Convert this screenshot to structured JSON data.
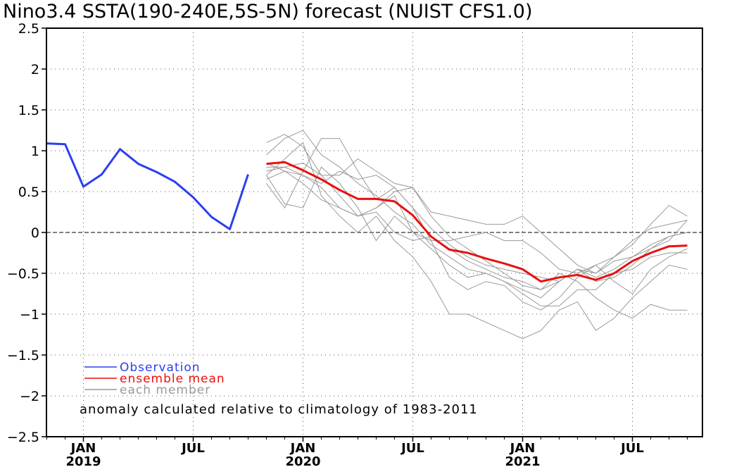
{
  "chart_data": {
    "type": "line",
    "title": "Nino3.4 SSTA(190-240E,5S-5N) forecast (NUIST CFS1.0)",
    "annotation": "anomaly calculated relative to climatology of 1983-2011",
    "ylim": [
      -2.5,
      2.5
    ],
    "yticks": [
      2.5,
      2,
      1.5,
      1,
      0.5,
      0,
      -0.5,
      -1,
      -1.5,
      -2,
      -2.5
    ],
    "xlim": [
      "2018-11",
      "2021-10"
    ],
    "xticks": [
      {
        "month": "2019-01",
        "label": "JAN",
        "year": "2019"
      },
      {
        "month": "2019-07",
        "label": "JUL",
        "year": ""
      },
      {
        "month": "2020-01",
        "label": "JAN",
        "year": "2020"
      },
      {
        "month": "2020-07",
        "label": "JUL",
        "year": ""
      },
      {
        "month": "2021-01",
        "label": "JAN",
        "year": "2021"
      },
      {
        "month": "2021-07",
        "label": "JUL",
        "year": ""
      }
    ],
    "zero_line": "dashed",
    "grid": "dotted",
    "legend": {
      "position": "bottom-left",
      "entries": [
        {
          "label": "Observation",
          "color": "#2a3ff0"
        },
        {
          "label": "ensemble mean",
          "color": "#e8100f"
        },
        {
          "label": "each member",
          "color": "#999999"
        }
      ]
    },
    "observation": {
      "name": "Observation",
      "color": "#2a3ff0",
      "x": [
        "2018-11",
        "2018-12",
        "2019-01",
        "2019-02",
        "2019-03",
        "2019-04",
        "2019-05",
        "2019-06",
        "2019-07",
        "2019-08",
        "2019-09",
        "2019-10"
      ],
      "y": [
        1.09,
        1.08,
        0.56,
        0.71,
        1.02,
        0.84,
        0.74,
        0.62,
        0.43,
        0.19,
        0.04,
        0.71
      ]
    },
    "ensemble_mean": {
      "name": "ensemble mean",
      "color": "#e8100f",
      "x": [
        "2019-11",
        "2019-12",
        "2020-01",
        "2020-02",
        "2020-03",
        "2020-04",
        "2020-05",
        "2020-06",
        "2020-07",
        "2020-08",
        "2020-09",
        "2020-10",
        "2020-11",
        "2020-12",
        "2021-01",
        "2021-02",
        "2021-03",
        "2021-04",
        "2021-05",
        "2021-06",
        "2021-07",
        "2021-08",
        "2021-09",
        "2021-10"
      ],
      "y": [
        0.84,
        0.86,
        0.76,
        0.65,
        0.52,
        0.41,
        0.41,
        0.38,
        0.21,
        -0.05,
        -0.21,
        -0.25,
        -0.32,
        -0.38,
        -0.45,
        -0.6,
        -0.55,
        -0.52,
        -0.58,
        -0.5,
        -0.35,
        -0.25,
        -0.17,
        -0.16
      ]
    },
    "members": {
      "name": "each member",
      "color": "#999999",
      "x": [
        "2019-11",
        "2019-12",
        "2020-01",
        "2020-02",
        "2020-03",
        "2020-04",
        "2020-05",
        "2020-06",
        "2020-07",
        "2020-08",
        "2020-09",
        "2020-10",
        "2020-11",
        "2020-12",
        "2021-01",
        "2021-02",
        "2021-03",
        "2021-04",
        "2021-05",
        "2021-06",
        "2021-07",
        "2021-08",
        "2021-09",
        "2021-10"
      ],
      "series": [
        [
          1.1,
          1.2,
          1.05,
          0.7,
          0.7,
          0.9,
          0.75,
          0.6,
          0.55,
          0.2,
          -0.05,
          -0.2,
          -0.35,
          -0.5,
          -0.65,
          -0.7,
          -0.6,
          -0.45,
          -0.55,
          -0.45,
          -0.3,
          -0.15,
          -0.05,
          0.0
        ],
        [
          0.95,
          1.15,
          1.25,
          0.95,
          0.8,
          0.6,
          0.45,
          0.25,
          0.1,
          -0.15,
          -0.3,
          -0.45,
          -0.5,
          -0.6,
          -0.7,
          -0.8,
          -0.6,
          -0.45,
          -0.6,
          -0.55,
          -0.4,
          -0.2,
          -0.1,
          0.15
        ],
        [
          0.6,
          0.3,
          0.75,
          1.15,
          1.15,
          0.75,
          0.4,
          0.55,
          0.3,
          -0.1,
          -0.55,
          -0.7,
          -0.6,
          -0.65,
          -0.85,
          -0.95,
          -0.8,
          -0.55,
          -0.4,
          -0.3,
          -0.1,
          0.05,
          0.1,
          0.15
        ],
        [
          0.75,
          0.8,
          0.85,
          0.7,
          0.45,
          0.2,
          0.3,
          0.5,
          0.55,
          0.25,
          0.2,
          0.15,
          0.1,
          0.1,
          0.2,
          0.0,
          -0.2,
          -0.4,
          -0.5,
          -0.3,
          -0.15,
          0.1,
          0.33,
          0.2
        ],
        [
          0.7,
          0.35,
          0.3,
          0.8,
          0.6,
          0.3,
          -0.1,
          0.2,
          0.0,
          -0.2,
          -0.4,
          -0.55,
          -0.5,
          -0.6,
          -0.75,
          -0.9,
          -0.9,
          -0.7,
          -0.7,
          -0.5,
          -0.45,
          -0.3,
          -0.25,
          -0.25
        ],
        [
          0.7,
          0.9,
          1.1,
          0.45,
          0.2,
          0.0,
          0.2,
          -0.1,
          -0.3,
          -0.6,
          -1.0,
          -1.0,
          -1.1,
          -1.2,
          -1.3,
          -1.2,
          -0.95,
          -0.85,
          -1.2,
          -1.05,
          -0.8,
          -0.6,
          -0.4,
          -0.45
        ],
        [
          0.85,
          0.75,
          0.6,
          0.4,
          0.3,
          0.2,
          0.25,
          0.0,
          -0.1,
          -0.05,
          -0.2,
          -0.35,
          -0.45,
          -0.55,
          -0.6,
          -0.7,
          -0.5,
          -0.6,
          -0.8,
          -0.95,
          -1.05,
          -0.88,
          -0.95,
          -0.95
        ],
        [
          0.8,
          0.8,
          0.7,
          0.55,
          0.3,
          0.2,
          0.3,
          0.45,
          0.0,
          -0.1,
          -0.1,
          -0.05,
          0.0,
          -0.1,
          -0.1,
          -0.25,
          -0.45,
          -0.5,
          -0.4,
          -0.6,
          -0.75,
          -0.45,
          -0.3,
          -0.2
        ],
        [
          0.65,
          0.75,
          0.7,
          0.6,
          0.75,
          0.65,
          0.7,
          0.55,
          0.3,
          0.05,
          -0.15,
          -0.3,
          -0.4,
          -0.45,
          -0.5,
          -0.55,
          -0.6,
          -0.45,
          -0.5,
          -0.35,
          -0.3,
          -0.2,
          -0.05,
          0.0
        ]
      ]
    }
  }
}
